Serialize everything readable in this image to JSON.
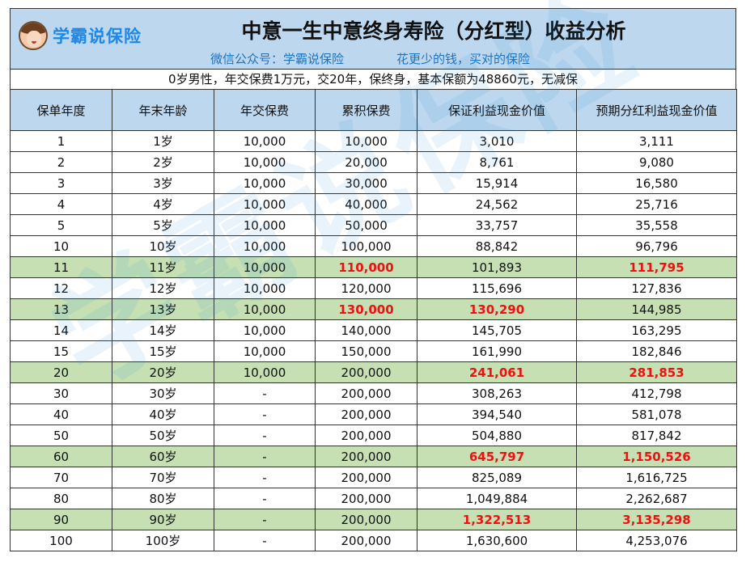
{
  "header": {
    "logo_text": "学霸说保险",
    "title": "中意一生中意终身寿险（分红型）收益分析",
    "subtitle_left": "微信公众号：学霸说保险",
    "subtitle_right": "花更少的钱，买对的保险"
  },
  "condition": "0岁男性，年交保费1万元，交20年，保终身，基本保额为48860元，无减保",
  "columns": [
    "保单年度",
    "年末年龄",
    "年交保费",
    "累积保费",
    "保证利益现金价值",
    "预期分红利益现金价值"
  ],
  "rows": [
    {
      "cells": [
        "1",
        "1岁",
        "10,000",
        "10,000",
        "3,010",
        "3,111"
      ],
      "hl": false,
      "red": []
    },
    {
      "cells": [
        "2",
        "2岁",
        "10,000",
        "20,000",
        "8,761",
        "9,080"
      ],
      "hl": false,
      "red": []
    },
    {
      "cells": [
        "3",
        "3岁",
        "10,000",
        "30,000",
        "15,914",
        "16,580"
      ],
      "hl": false,
      "red": []
    },
    {
      "cells": [
        "4",
        "4岁",
        "10,000",
        "40,000",
        "24,562",
        "25,716"
      ],
      "hl": false,
      "red": []
    },
    {
      "cells": [
        "5",
        "5岁",
        "10,000",
        "50,000",
        "33,757",
        "35,558"
      ],
      "hl": false,
      "red": []
    },
    {
      "cells": [
        "10",
        "10岁",
        "10,000",
        "100,000",
        "88,842",
        "96,796"
      ],
      "hl": false,
      "red": []
    },
    {
      "cells": [
        "11",
        "11岁",
        "10,000",
        "110,000",
        "101,893",
        "111,795"
      ],
      "hl": true,
      "red": [
        3,
        5
      ]
    },
    {
      "cells": [
        "12",
        "12岁",
        "10,000",
        "120,000",
        "115,696",
        "127,836"
      ],
      "hl": false,
      "red": []
    },
    {
      "cells": [
        "13",
        "13岁",
        "10,000",
        "130,000",
        "130,290",
        "144,985"
      ],
      "hl": true,
      "red": [
        3,
        4
      ]
    },
    {
      "cells": [
        "14",
        "14岁",
        "10,000",
        "140,000",
        "145,705",
        "163,295"
      ],
      "hl": false,
      "red": []
    },
    {
      "cells": [
        "15",
        "15岁",
        "10,000",
        "150,000",
        "161,990",
        "182,846"
      ],
      "hl": false,
      "red": []
    },
    {
      "cells": [
        "20",
        "20岁",
        "10,000",
        "200,000",
        "241,061",
        "281,853"
      ],
      "hl": true,
      "red": [
        4,
        5
      ]
    },
    {
      "cells": [
        "30",
        "30岁",
        "-",
        "200,000",
        "308,263",
        "412,798"
      ],
      "hl": false,
      "red": []
    },
    {
      "cells": [
        "40",
        "40岁",
        "-",
        "200,000",
        "394,540",
        "581,078"
      ],
      "hl": false,
      "red": []
    },
    {
      "cells": [
        "50",
        "50岁",
        "-",
        "200,000",
        "504,880",
        "817,842"
      ],
      "hl": false,
      "red": []
    },
    {
      "cells": [
        "60",
        "60岁",
        "-",
        "200,000",
        "645,797",
        "1,150,526"
      ],
      "hl": true,
      "red": [
        4,
        5
      ]
    },
    {
      "cells": [
        "70",
        "70岁",
        "-",
        "200,000",
        "825,089",
        "1,616,725"
      ],
      "hl": false,
      "red": []
    },
    {
      "cells": [
        "80",
        "80岁",
        "-",
        "200,000",
        "1,049,884",
        "2,262,687"
      ],
      "hl": false,
      "red": []
    },
    {
      "cells": [
        "90",
        "90岁",
        "-",
        "200,000",
        "1,322,513",
        "3,135,298"
      ],
      "hl": true,
      "red": [
        4,
        5
      ]
    },
    {
      "cells": [
        "100",
        "100岁",
        "-",
        "200,000",
        "1,630,600",
        "4,253,076"
      ],
      "hl": false,
      "red": []
    }
  ],
  "watermark": "学霸说保险",
  "colors": {
    "header_bg": "#bdd7ee",
    "highlight": "#c6e0b4",
    "red": "#ee1111",
    "blue": "#1e73be"
  }
}
